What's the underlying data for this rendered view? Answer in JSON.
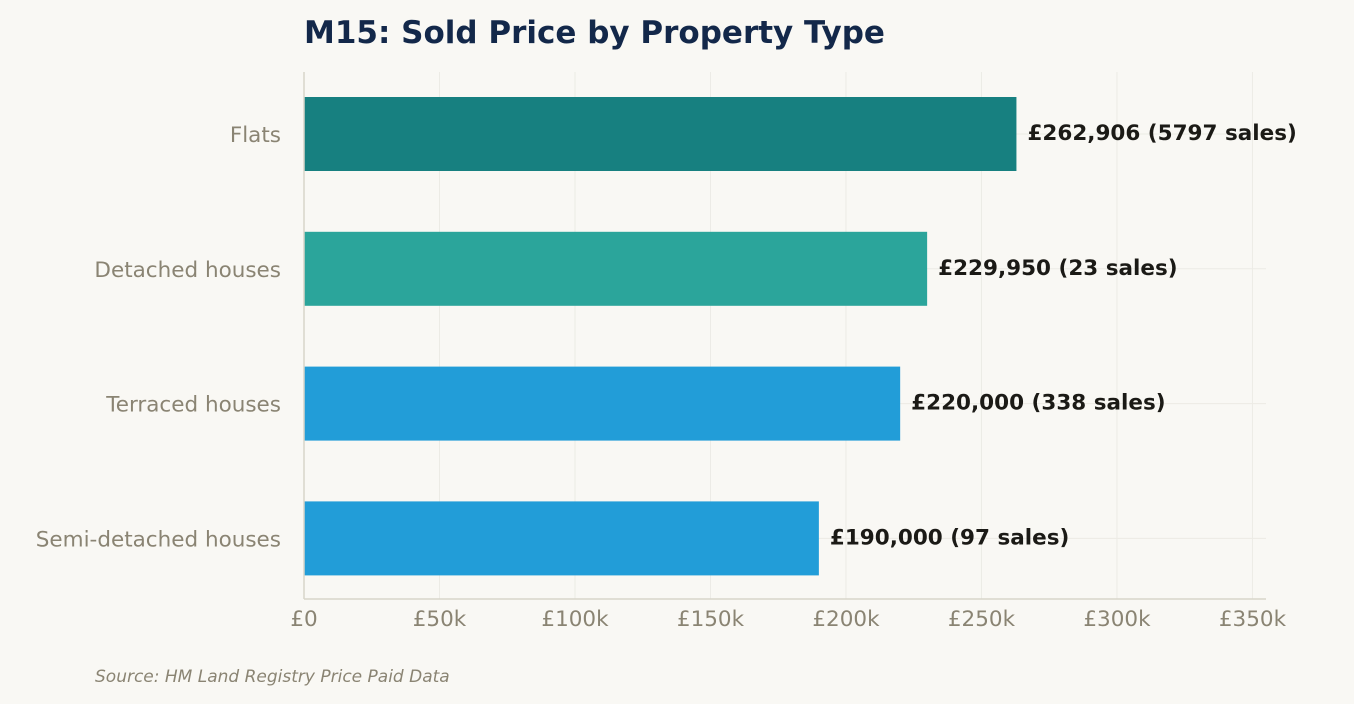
{
  "colors": {
    "background": "#f9f8f4",
    "title": "#13284a",
    "muted_text": "#8a8473",
    "data_label": "#1b1a16",
    "grid": "#ecebe5",
    "axis": "#d8d5ca"
  },
  "chart_data": {
    "type": "bar",
    "orientation": "horizontal",
    "title": "M15: Sold Price by Property Type",
    "xlabel": "",
    "ylabel": "",
    "xlim": [
      0,
      355000
    ],
    "grid": true,
    "categories": [
      "Flats",
      "Detached houses",
      "Terraced houses",
      "Semi-detached houses"
    ],
    "values": [
      262906,
      229950,
      220000,
      190000
    ],
    "bar_colors": [
      "#178080",
      "#2ba59b",
      "#229dd8",
      "#229dd8"
    ],
    "data_labels": [
      "£262,906  (5797 sales)",
      "£229,950  (23 sales)",
      "£220,000  (338 sales)",
      "£190,000  (97 sales)"
    ],
    "x_ticks": [
      {
        "value": 0,
        "label": "£0"
      },
      {
        "value": 50000,
        "label": "£50k"
      },
      {
        "value": 100000,
        "label": "£100k"
      },
      {
        "value": 150000,
        "label": "£150k"
      },
      {
        "value": 200000,
        "label": "£200k"
      },
      {
        "value": 250000,
        "label": "£250k"
      },
      {
        "value": 300000,
        "label": "£300k"
      },
      {
        "value": 350000,
        "label": "£350k"
      }
    ]
  },
  "footer": {
    "source": "Source: HM Land Registry Price Paid Data"
  }
}
